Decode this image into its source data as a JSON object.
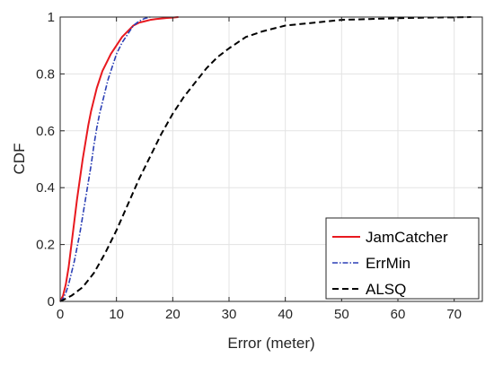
{
  "chart_data": {
    "type": "line",
    "title": "",
    "xlabel": "Error (meter)",
    "ylabel": "CDF",
    "xlim": [
      0,
      75
    ],
    "ylim": [
      0,
      1
    ],
    "xticks": [
      0,
      10,
      20,
      30,
      40,
      50,
      60,
      70
    ],
    "yticks": [
      0,
      0.2,
      0.4,
      0.6,
      0.8,
      1
    ],
    "xtick_labels": [
      "0",
      "10",
      "20",
      "30",
      "40",
      "50",
      "60",
      "70"
    ],
    "ytick_labels": [
      "0",
      "0.2",
      "0.4",
      "0.6",
      "0.8",
      "1"
    ],
    "grid": true,
    "legend_position": "bottom-right",
    "series": [
      {
        "name": "JamCatcher",
        "color": "#e8191f",
        "style": "solid",
        "x": [
          0,
          0.5,
          1,
          1.5,
          2,
          2.5,
          3,
          3.5,
          4,
          4.5,
          5,
          5.5,
          6,
          6.5,
          7,
          7.5,
          8,
          8.5,
          9,
          10,
          11,
          12,
          13,
          14,
          15,
          16,
          17,
          18,
          19,
          20,
          21
        ],
        "y": [
          0,
          0.02,
          0.06,
          0.12,
          0.2,
          0.28,
          0.36,
          0.43,
          0.5,
          0.56,
          0.62,
          0.67,
          0.71,
          0.75,
          0.78,
          0.81,
          0.83,
          0.85,
          0.87,
          0.9,
          0.93,
          0.95,
          0.97,
          0.98,
          0.985,
          0.99,
          0.993,
          0.995,
          0.997,
          0.998,
          1
        ]
      },
      {
        "name": "ErrMin",
        "color": "#2b3fb5",
        "style": "dashdot",
        "x": [
          0,
          0.5,
          1,
          1.5,
          2,
          2.5,
          3,
          3.5,
          4,
          4.5,
          5,
          5.5,
          6,
          6.5,
          7,
          7.5,
          8,
          8.5,
          9,
          9.5,
          10,
          11,
          12,
          13,
          14,
          15,
          16
        ],
        "y": [
          0,
          0.01,
          0.03,
          0.06,
          0.1,
          0.14,
          0.19,
          0.24,
          0.3,
          0.36,
          0.42,
          0.48,
          0.55,
          0.61,
          0.66,
          0.7,
          0.74,
          0.78,
          0.81,
          0.84,
          0.87,
          0.91,
          0.94,
          0.97,
          0.985,
          0.995,
          1
        ]
      },
      {
        "name": "ALSQ",
        "color": "#000000",
        "style": "dashed",
        "x": [
          0,
          2,
          4,
          6,
          8,
          10,
          12,
          14,
          16,
          18,
          20,
          22,
          24,
          26,
          28,
          30,
          33,
          36,
          40,
          45,
          50,
          55,
          60,
          65,
          70,
          73
        ],
        "y": [
          0,
          0.02,
          0.05,
          0.1,
          0.17,
          0.25,
          0.34,
          0.43,
          0.51,
          0.59,
          0.66,
          0.72,
          0.77,
          0.82,
          0.86,
          0.89,
          0.93,
          0.95,
          0.97,
          0.98,
          0.99,
          0.993,
          0.996,
          0.998,
          0.999,
          1
        ]
      }
    ]
  }
}
